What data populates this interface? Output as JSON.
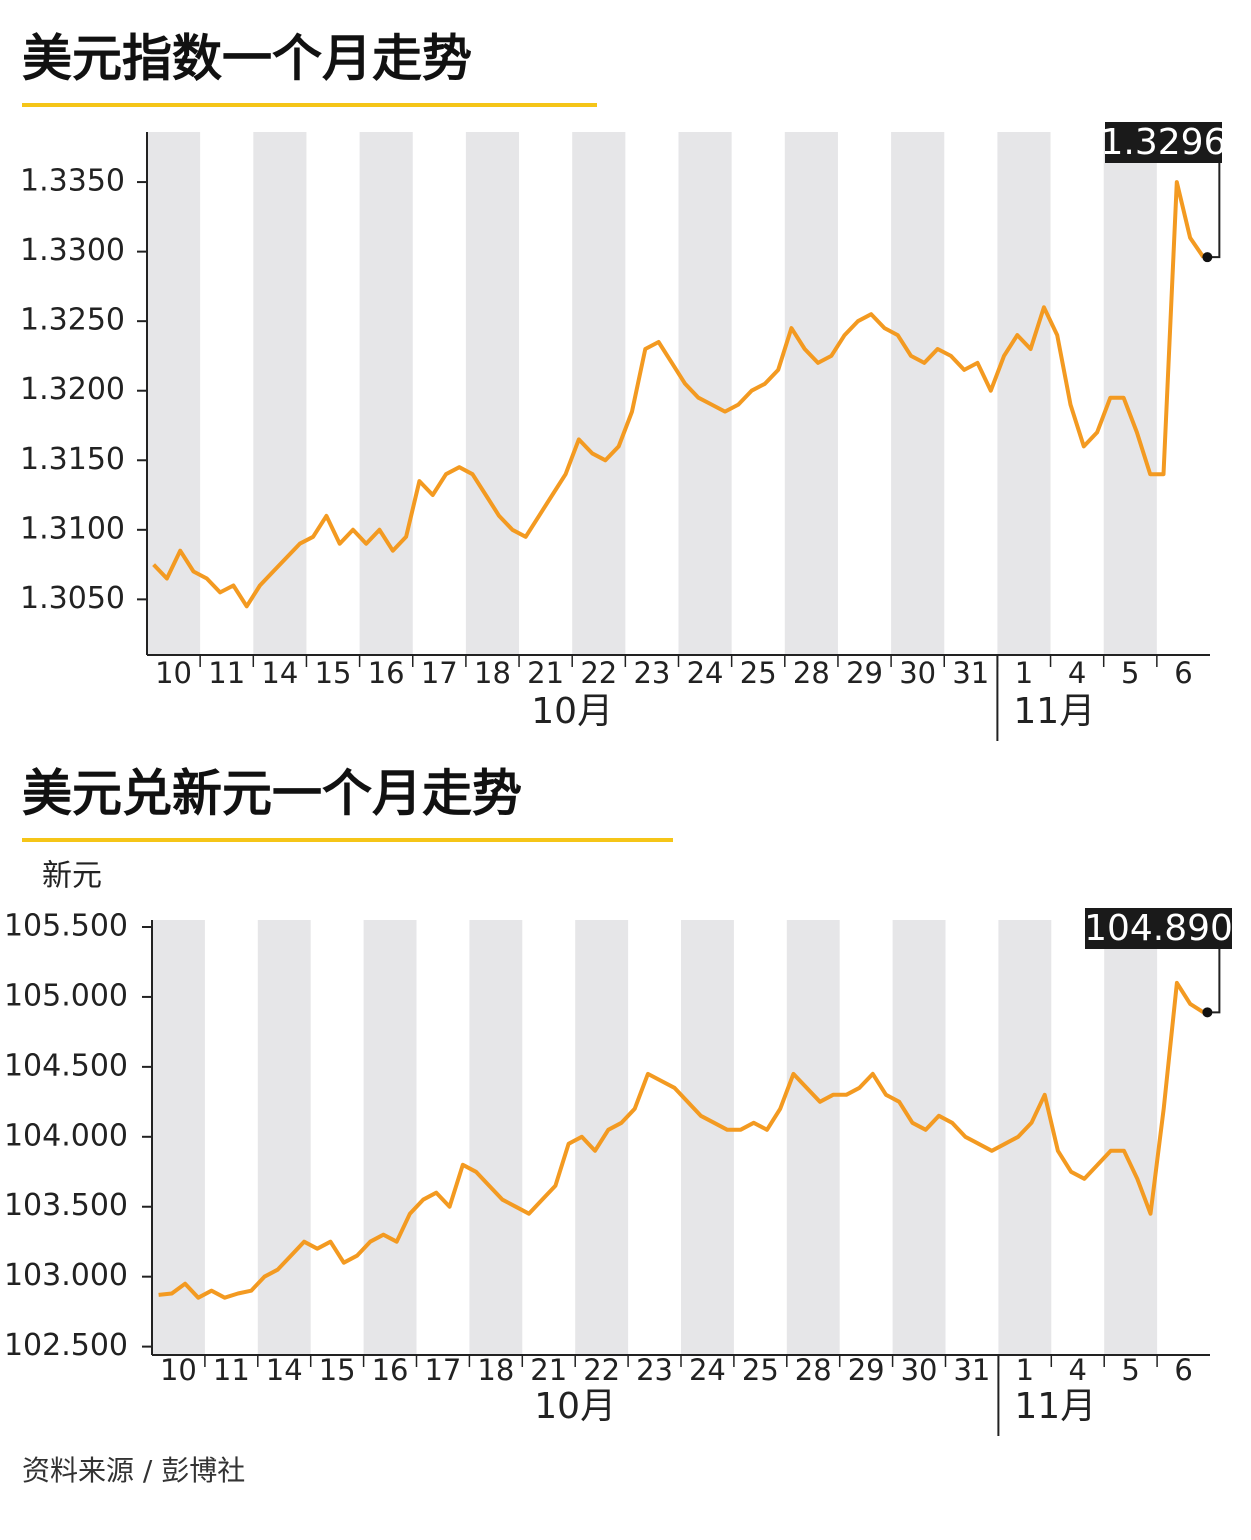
{
  "chart_data": [
    {
      "type": "line",
      "title": "美元指数一个月走势",
      "color": "#f39a21",
      "month_groups": [
        {
          "label": "10月",
          "days": [
            "10",
            "11",
            "14",
            "15",
            "16",
            "17",
            "18",
            "21",
            "22",
            "23",
            "24",
            "25",
            "28",
            "29",
            "30",
            "31"
          ]
        },
        {
          "label": "11月",
          "days": [
            "1",
            "4",
            "5",
            "6"
          ]
        }
      ],
      "values": [
        [
          1.3075,
          1.3065,
          1.3085,
          1.307
        ],
        [
          1.3065,
          1.3055,
          1.306,
          1.3045
        ],
        [
          1.306,
          1.307,
          1.308,
          1.309
        ],
        [
          1.3095,
          1.311,
          1.309,
          1.31
        ],
        [
          1.309,
          1.31,
          1.3085,
          1.3095
        ],
        [
          1.3135,
          1.3125,
          1.314,
          1.3145
        ],
        [
          1.314,
          1.3125,
          1.311,
          1.31
        ],
        [
          1.3095,
          1.311,
          1.3125,
          1.314
        ],
        [
          1.3165,
          1.3155,
          1.315,
          1.316
        ],
        [
          1.3185,
          1.323,
          1.3235,
          1.322
        ],
        [
          1.3205,
          1.3195,
          1.319,
          1.3185
        ],
        [
          1.319,
          1.32,
          1.3205,
          1.3215
        ],
        [
          1.3245,
          1.323,
          1.322,
          1.3225
        ],
        [
          1.324,
          1.325,
          1.3255,
          1.3245
        ],
        [
          1.324,
          1.3225,
          1.322,
          1.323
        ],
        [
          1.3225,
          1.3215,
          1.322,
          1.32
        ],
        [
          1.3225,
          1.324,
          1.323,
          1.326
        ],
        [
          1.324,
          1.319,
          1.316,
          1.317
        ],
        [
          1.3195,
          1.3195,
          1.317,
          1.314
        ],
        [
          1.314,
          1.335,
          1.331,
          1.3296
        ]
      ],
      "annotation": "1.3296",
      "ylim": [
        1.301,
        1.3386
      ],
      "yticks": [
        {
          "value": 1.305,
          "label": "1.3050"
        },
        {
          "value": 1.31,
          "label": "1.3100"
        },
        {
          "value": 1.315,
          "label": "1.3150"
        },
        {
          "value": 1.32,
          "label": "1.3200"
        },
        {
          "value": 1.325,
          "label": "1.3250"
        },
        {
          "value": 1.33,
          "label": "1.3300"
        },
        {
          "value": 1.335,
          "label": "1.3350"
        }
      ]
    },
    {
      "type": "line",
      "title": "美元兑新元一个月走势",
      "y_label": "新元",
      "color": "#f39a21",
      "month_groups": [
        {
          "label": "10月",
          "days": [
            "10",
            "11",
            "14",
            "15",
            "16",
            "17",
            "18",
            "21",
            "22",
            "23",
            "24",
            "25",
            "28",
            "29",
            "30",
            "31"
          ]
        },
        {
          "label": "11月",
          "days": [
            "1",
            "4",
            "5",
            "6"
          ]
        }
      ],
      "values": [
        [
          102.87,
          102.88,
          102.95,
          102.85
        ],
        [
          102.9,
          102.85,
          102.88,
          102.9
        ],
        [
          103.0,
          103.05,
          103.15,
          103.25
        ],
        [
          103.2,
          103.25,
          103.1,
          103.15
        ],
        [
          103.25,
          103.3,
          103.25,
          103.45
        ],
        [
          103.55,
          103.6,
          103.5,
          103.8
        ],
        [
          103.75,
          103.65,
          103.55,
          103.5
        ],
        [
          103.45,
          103.55,
          103.65,
          103.95
        ],
        [
          104.0,
          103.9,
          104.05,
          104.1
        ],
        [
          104.2,
          104.45,
          104.4,
          104.35
        ],
        [
          104.25,
          104.15,
          104.1,
          104.05
        ],
        [
          104.05,
          104.1,
          104.05,
          104.2
        ],
        [
          104.45,
          104.35,
          104.25,
          104.3
        ],
        [
          104.3,
          104.35,
          104.45,
          104.3
        ],
        [
          104.25,
          104.1,
          104.05,
          104.15
        ],
        [
          104.1,
          104.0,
          103.95,
          103.9
        ],
        [
          103.95,
          104.0,
          104.1,
          104.3
        ],
        [
          103.9,
          103.75,
          103.7,
          103.8
        ],
        [
          103.9,
          103.9,
          103.7,
          103.45
        ],
        [
          104.2,
          105.1,
          104.95,
          104.89
        ]
      ],
      "annotation": "104.890",
      "ylim": [
        102.44,
        105.55
      ],
      "yticks": [
        {
          "value": 102.5,
          "label": "102.500"
        },
        {
          "value": 103,
          "label": "103.000"
        },
        {
          "value": 103.5,
          "label": "103.500"
        },
        {
          "value": 104,
          "label": "104.000"
        },
        {
          "value": 104.5,
          "label": "104.500"
        },
        {
          "value": 105,
          "label": "105.000"
        },
        {
          "value": 105.5,
          "label": "105.500"
        }
      ]
    }
  ],
  "source": "资料来源 / 彭博社"
}
